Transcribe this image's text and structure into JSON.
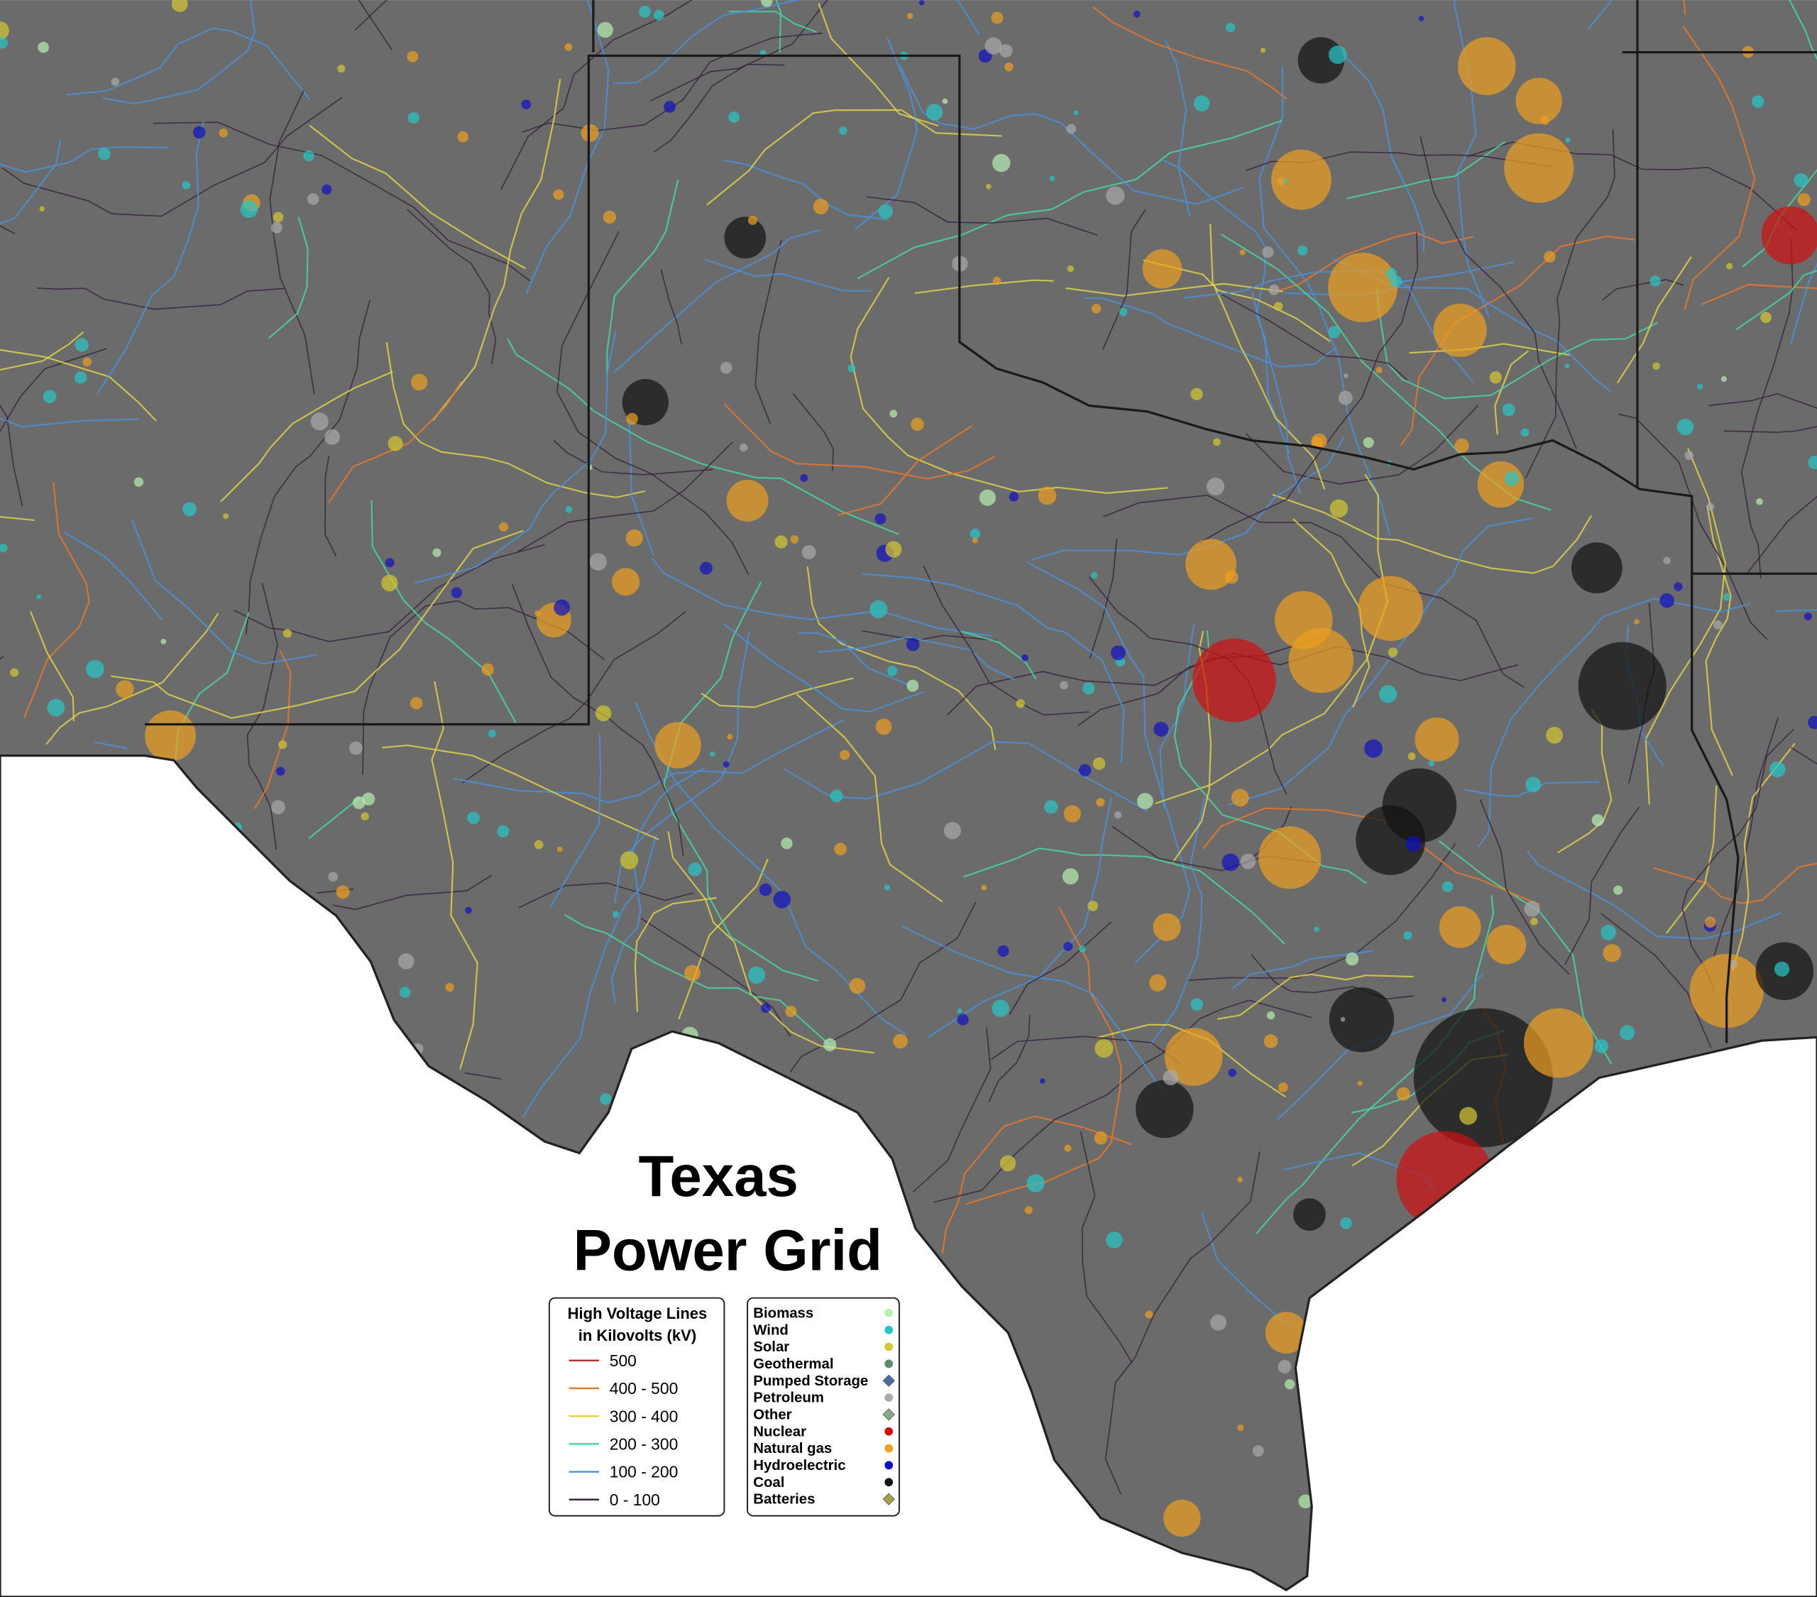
{
  "title": [
    "Texas",
    "Power Grid"
  ],
  "voltage_legend": {
    "title": [
      "High Voltage Lines",
      "in Kilovolts (kV)"
    ],
    "items": [
      {
        "label": "500",
        "color": "#b03030"
      },
      {
        "label": "400 - 500",
        "color": "#e8782a"
      },
      {
        "label": "300 - 400",
        "color": "#e0d24a"
      },
      {
        "label": "200 - 300",
        "color": "#4ad6a0"
      },
      {
        "label": "100 - 200",
        "color": "#4a90d9"
      },
      {
        "label": "0 - 100",
        "color": "#3a2240"
      }
    ]
  },
  "source_legend": {
    "items": [
      {
        "label": "Biomass",
        "color": "#b8f0b0",
        "shape": "circle"
      },
      {
        "label": "Wind",
        "color": "#26c6c6",
        "shape": "circle"
      },
      {
        "label": "Solar",
        "color": "#d4c830",
        "shape": "circle"
      },
      {
        "label": "Geothermal",
        "color": "#5c8a6a",
        "shape": "circle"
      },
      {
        "label": "Pumped Storage",
        "color": "#4a6aa8",
        "shape": "diamond"
      },
      {
        "label": "Petroleum",
        "color": "#aaaaaa",
        "shape": "circle"
      },
      {
        "label": "Other",
        "color": "#88aa88",
        "shape": "diamond"
      },
      {
        "label": "Nuclear",
        "color": "#d01010",
        "shape": "circle"
      },
      {
        "label": "Natural gas",
        "color": "#f0a020",
        "shape": "circle"
      },
      {
        "label": "Hydroelectric",
        "color": "#1010c0",
        "shape": "circle"
      },
      {
        "label": "Coal",
        "color": "#111111",
        "shape": "circle"
      },
      {
        "label": "Batteries",
        "color": "#a8a050",
        "shape": "diamond"
      }
    ]
  }
}
